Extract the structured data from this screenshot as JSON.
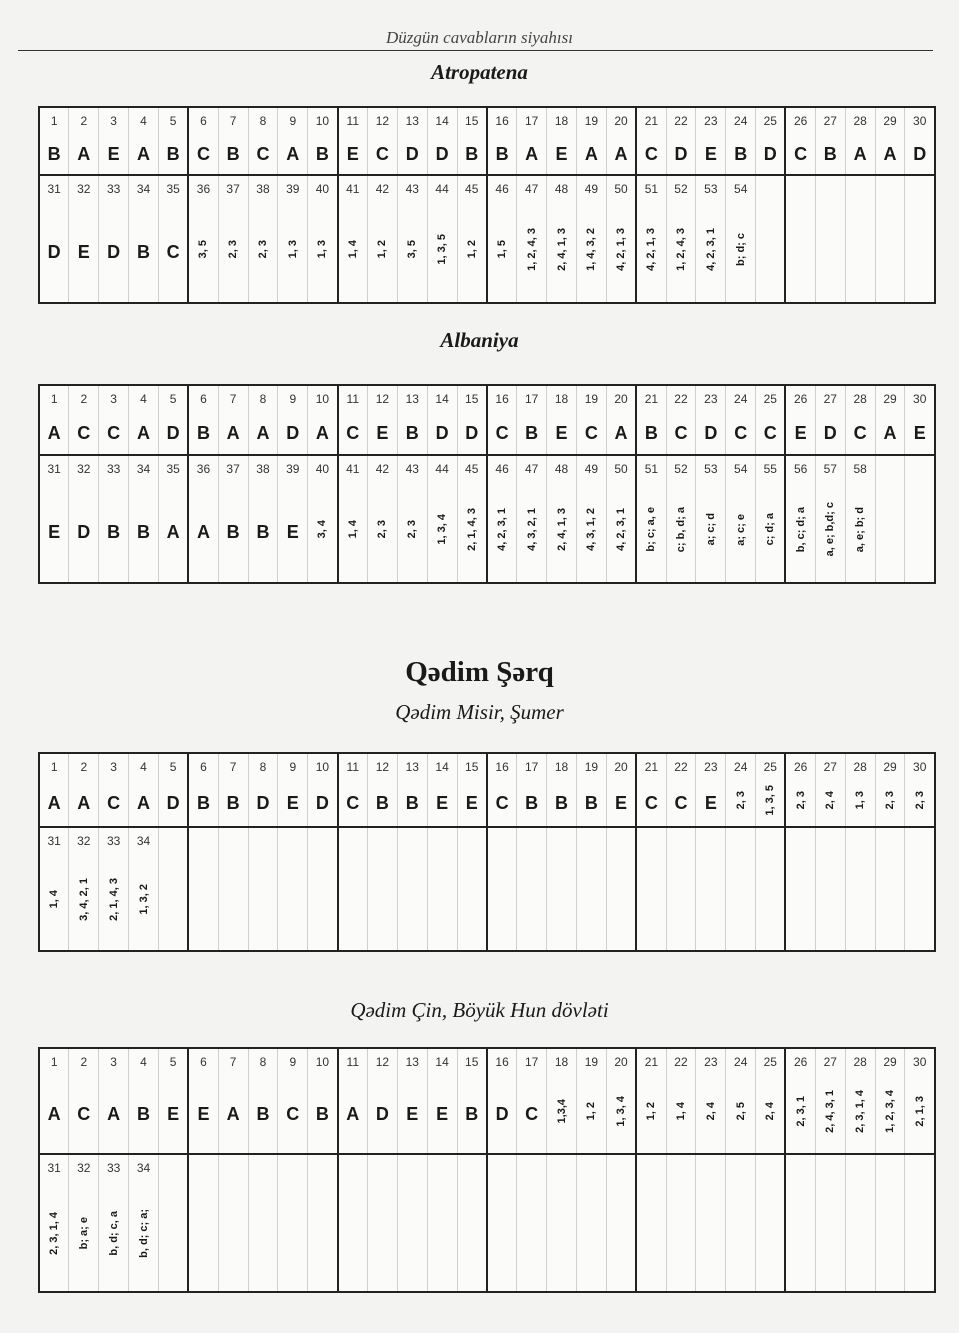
{
  "running_header": "Düzgün cavabların siyahısı",
  "section_heading": "Qədim Şərq",
  "tables": [
    {
      "title": "Atropatena",
      "row1_numbers": [
        "1",
        "2",
        "3",
        "4",
        "5",
        "6",
        "7",
        "8",
        "9",
        "10",
        "11",
        "12",
        "13",
        "14",
        "15",
        "16",
        "17",
        "18",
        "19",
        "20",
        "21",
        "22",
        "23",
        "24",
        "25",
        "26",
        "27",
        "28",
        "29",
        "30"
      ],
      "row1_answers": [
        "B",
        "A",
        "E",
        "A",
        "B",
        "C",
        "B",
        "C",
        "A",
        "B",
        "E",
        "C",
        "D",
        "D",
        "B",
        "B",
        "A",
        "E",
        "A",
        "A",
        "C",
        "D",
        "E",
        "B",
        "D",
        "C",
        "B",
        "A",
        "A",
        "D"
      ],
      "row2_numbers": [
        "31",
        "32",
        "33",
        "34",
        "35",
        "36",
        "37",
        "38",
        "39",
        "40",
        "41",
        "42",
        "43",
        "44",
        "45",
        "46",
        "47",
        "48",
        "49",
        "50",
        "51",
        "52",
        "53",
        "54"
      ],
      "row2_answers": [
        "D",
        "E",
        "D",
        "B",
        "C",
        "3, 5",
        "2, 3",
        "2, 3",
        "1, 3",
        "1, 3",
        "1, 4",
        "1, 2",
        "3, 5",
        "1, 3, 5",
        "1, 2",
        "1, 5",
        "1, 2, 4, 3",
        "2, 4, 1, 3",
        "1, 4, 3, 2",
        "4, 2, 1, 3",
        "4, 2, 1, 3",
        "1, 2, 4, 3",
        "4, 2, 3, 1",
        "b; d; c"
      ]
    },
    {
      "title": "Albaniya",
      "row1_numbers": [
        "1",
        "2",
        "3",
        "4",
        "5",
        "6",
        "7",
        "8",
        "9",
        "10",
        "11",
        "12",
        "13",
        "14",
        "15",
        "16",
        "17",
        "18",
        "19",
        "20",
        "21",
        "22",
        "23",
        "24",
        "25",
        "26",
        "27",
        "28",
        "29",
        "30"
      ],
      "row1_answers": [
        "A",
        "C",
        "C",
        "A",
        "D",
        "B",
        "A",
        "A",
        "D",
        "A",
        "C",
        "E",
        "B",
        "D",
        "D",
        "C",
        "B",
        "E",
        "C",
        "A",
        "B",
        "C",
        "D",
        "C",
        "C",
        "E",
        "D",
        "C",
        "A",
        "E"
      ],
      "row2_numbers": [
        "31",
        "32",
        "33",
        "34",
        "35",
        "36",
        "37",
        "38",
        "39",
        "40",
        "41",
        "42",
        "43",
        "44",
        "45",
        "46",
        "47",
        "48",
        "49",
        "50",
        "51",
        "52",
        "53",
        "54",
        "55",
        "56",
        "57",
        "58"
      ],
      "row2_answers": [
        "E",
        "D",
        "B",
        "B",
        "A",
        "A",
        "B",
        "B",
        "E",
        "3, 4",
        "1, 4",
        "2, 3",
        "2, 3",
        "1, 3, 4",
        "2, 1, 4, 3",
        "4, 2, 3, 1",
        "4, 3, 2, 1",
        "2, 4, 1, 3",
        "4, 3, 1, 2",
        "4, 2, 3, 1",
        "b; c; a, e",
        "c; b, d; a",
        "a; c; d",
        "a; c; e",
        "c; d; a",
        "b, c; d; a",
        "a, e; b,d; c",
        "a, e; b; d"
      ]
    },
    {
      "title": "Qədim Misir, Şumer",
      "row1_numbers": [
        "1",
        "2",
        "3",
        "4",
        "5",
        "6",
        "7",
        "8",
        "9",
        "10",
        "11",
        "12",
        "13",
        "14",
        "15",
        "16",
        "17",
        "18",
        "19",
        "20",
        "21",
        "22",
        "23",
        "24",
        "25",
        "26",
        "27",
        "28",
        "29",
        "30"
      ],
      "row1_answers": [
        "A",
        "A",
        "C",
        "A",
        "D",
        "B",
        "B",
        "D",
        "E",
        "D",
        "C",
        "B",
        "B",
        "E",
        "E",
        "C",
        "B",
        "B",
        "B",
        "E",
        "C",
        "C",
        "E",
        "2, 3",
        "1, 3, 5",
        "2, 3",
        "2, 4",
        "1, 3",
        "2, 3",
        "2, 3"
      ],
      "row2_numbers": [
        "31",
        "32",
        "33",
        "34"
      ],
      "row2_answers": [
        "1, 4",
        "3, 4, 2, 1",
        "2, 1, 4, 3",
        "1, 3, 2"
      ]
    },
    {
      "title": "Qədim Çin, Böyük Hun dövləti",
      "row1_numbers": [
        "1",
        "2",
        "3",
        "4",
        "5",
        "6",
        "7",
        "8",
        "9",
        "10",
        "11",
        "12",
        "13",
        "14",
        "15",
        "16",
        "17",
        "18",
        "19",
        "20",
        "21",
        "22",
        "23",
        "24",
        "25",
        "26",
        "27",
        "28",
        "29",
        "30"
      ],
      "row1_answers": [
        "A",
        "C",
        "A",
        "B",
        "E",
        "E",
        "A",
        "B",
        "C",
        "B",
        "A",
        "D",
        "E",
        "E",
        "B",
        "D",
        "C",
        "1,3,4",
        "1, 2",
        "1, 3, 4",
        "1, 2",
        "1, 4",
        "2, 4",
        "2, 5",
        "2, 4",
        "2, 3, 1",
        "2, 4, 3, 1",
        "2, 3, 1, 4",
        "1, 2, 3, 4",
        "2, 1, 3"
      ],
      "row2_numbers": [
        "31",
        "32",
        "33",
        "34"
      ],
      "row2_answers": [
        "2, 3, 1, 4",
        "b; a; e",
        "b, d; c, a",
        "b, d; c; a;"
      ]
    }
  ]
}
